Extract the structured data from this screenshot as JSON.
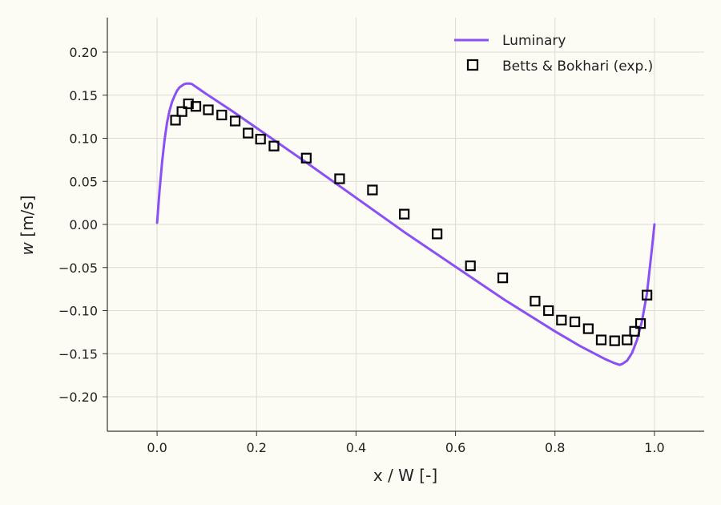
{
  "chart_data": {
    "type": "scatter",
    "xlabel": "x / W [-]",
    "ylabel_symbol": "w",
    "ylabel_unit": "[m/s]",
    "xlim": [
      -0.1,
      1.1
    ],
    "ylim": [
      -0.24,
      0.24
    ],
    "xticks": [
      0.0,
      0.2,
      0.4,
      0.6,
      0.8,
      1.0
    ],
    "xtick_labels": [
      "0.0",
      "0.2",
      "0.4",
      "0.6",
      "0.8",
      "1.0"
    ],
    "yticks": [
      0.2,
      0.15,
      0.1,
      0.05,
      0.0,
      -0.05,
      -0.1,
      -0.15,
      -0.2
    ],
    "ytick_labels": [
      "0.20",
      "0.15",
      "0.10",
      "0.05",
      "0.00",
      "−0.05",
      "−0.10",
      "−0.15",
      "−0.20"
    ],
    "grid": true,
    "legend_position": "top-right",
    "series": [
      {
        "name": "Luminary",
        "kind": "line",
        "color": "#8a4ff5",
        "x": [
          0.0,
          0.005,
          0.01,
          0.015,
          0.02,
          0.025,
          0.03,
          0.035,
          0.04,
          0.045,
          0.05,
          0.055,
          0.06,
          0.065,
          0.07,
          0.08,
          0.1,
          0.15,
          0.2,
          0.3,
          0.4,
          0.5,
          0.6,
          0.7,
          0.8,
          0.85,
          0.9,
          0.92,
          0.93,
          0.935,
          0.945,
          0.955,
          0.965,
          0.975,
          0.985,
          0.995,
          1.0
        ],
        "y": [
          0.002,
          0.04,
          0.072,
          0.098,
          0.118,
          0.132,
          0.142,
          0.149,
          0.155,
          0.159,
          0.161,
          0.163,
          0.1635,
          0.1635,
          0.163,
          0.159,
          0.151,
          0.132,
          0.112,
          0.072,
          0.031,
          -0.01,
          -0.049,
          -0.088,
          -0.124,
          -0.141,
          -0.156,
          -0.161,
          -0.163,
          -0.162,
          -0.158,
          -0.149,
          -0.134,
          -0.112,
          -0.08,
          -0.028,
          0.0
        ]
      },
      {
        "name": "Betts & Bokhari (exp.)",
        "kind": "scatter",
        "marker": "square",
        "color": "#000000",
        "x": [
          0.037,
          0.05,
          0.063,
          0.078,
          0.103,
          0.13,
          0.157,
          0.183,
          0.208,
          0.235,
          0.3,
          0.367,
          0.433,
          0.497,
          0.563,
          0.63,
          0.695,
          0.76,
          0.787,
          0.813,
          0.84,
          0.867,
          0.893,
          0.92,
          0.945,
          0.96,
          0.972,
          0.985
        ],
        "y": [
          0.121,
          0.131,
          0.14,
          0.137,
          0.133,
          0.127,
          0.12,
          0.106,
          0.099,
          0.091,
          0.077,
          0.053,
          0.04,
          0.012,
          -0.011,
          -0.048,
          -0.062,
          -0.089,
          -0.1,
          -0.111,
          -0.113,
          -0.121,
          -0.134,
          -0.135,
          -0.134,
          -0.124,
          -0.115,
          -0.082
        ]
      }
    ]
  }
}
